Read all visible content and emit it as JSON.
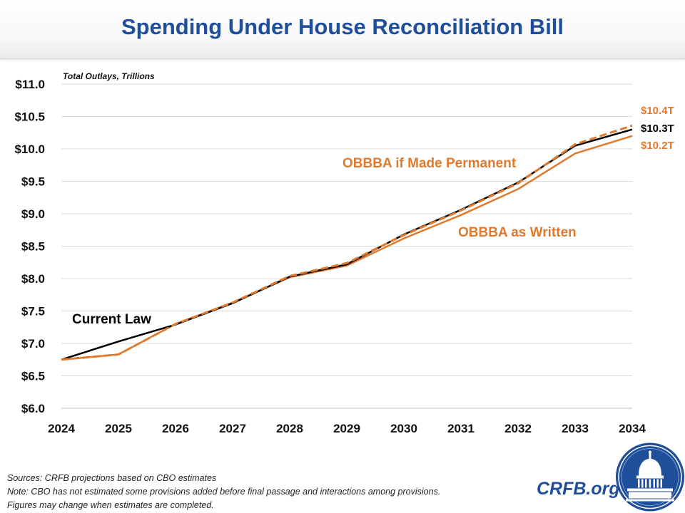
{
  "title": "Spending Under House Reconciliation Bill",
  "chart_data": {
    "type": "line",
    "subtitle": "Total Outlays, Trillions",
    "x": [
      2024,
      2025,
      2026,
      2027,
      2028,
      2029,
      2030,
      2031,
      2032,
      2033,
      2034
    ],
    "xlabels": [
      "2024",
      "2025",
      "2026",
      "2027",
      "2028",
      "2029",
      "2030",
      "2031",
      "2032",
      "2033",
      "2034"
    ],
    "ylim": [
      6.0,
      11.0
    ],
    "yticks": [
      6.0,
      6.5,
      7.0,
      7.5,
      8.0,
      8.5,
      9.0,
      9.5,
      10.0,
      10.5,
      11.0
    ],
    "ytick_labels": [
      "$6.0",
      "$6.5",
      "$7.0",
      "$7.5",
      "$8.0",
      "$8.5",
      "$9.0",
      "$9.5",
      "$10.0",
      "$10.5",
      "$11.0"
    ],
    "grid": true,
    "series": [
      {
        "name": "Current Law",
        "color": "#000000",
        "dash": false,
        "values": [
          6.75,
          7.03,
          7.29,
          7.62,
          8.03,
          8.22,
          8.68,
          9.06,
          9.48,
          10.05,
          10.3
        ],
        "end_label": "$10.3T"
      },
      {
        "name": "OBBBA if Made Permanent",
        "color": "#e07a2e",
        "dash": true,
        "values": [
          6.75,
          6.83,
          7.3,
          7.63,
          8.04,
          8.24,
          8.67,
          9.05,
          9.47,
          10.07,
          10.36
        ],
        "end_label": "$10.4T"
      },
      {
        "name": "OBBBA as Written",
        "color": "#e07a2e",
        "dash": false,
        "values": [
          6.75,
          6.83,
          7.3,
          7.63,
          8.02,
          8.2,
          8.62,
          8.98,
          9.38,
          9.93,
          10.2
        ],
        "end_label": "$10.2T"
      }
    ]
  },
  "footer": {
    "sources": "Sources: CRFB projections based on CBO estimates",
    "note1": "Note: CBO has not estimated some provisions added before final passage and interactions among provisions.",
    "note2": "Figures may change when estimates are completed."
  },
  "brand": {
    "site": "CRFB.org",
    "logo_icon": "capitol-dome-seal-icon",
    "blue": "#1f4e9a"
  }
}
